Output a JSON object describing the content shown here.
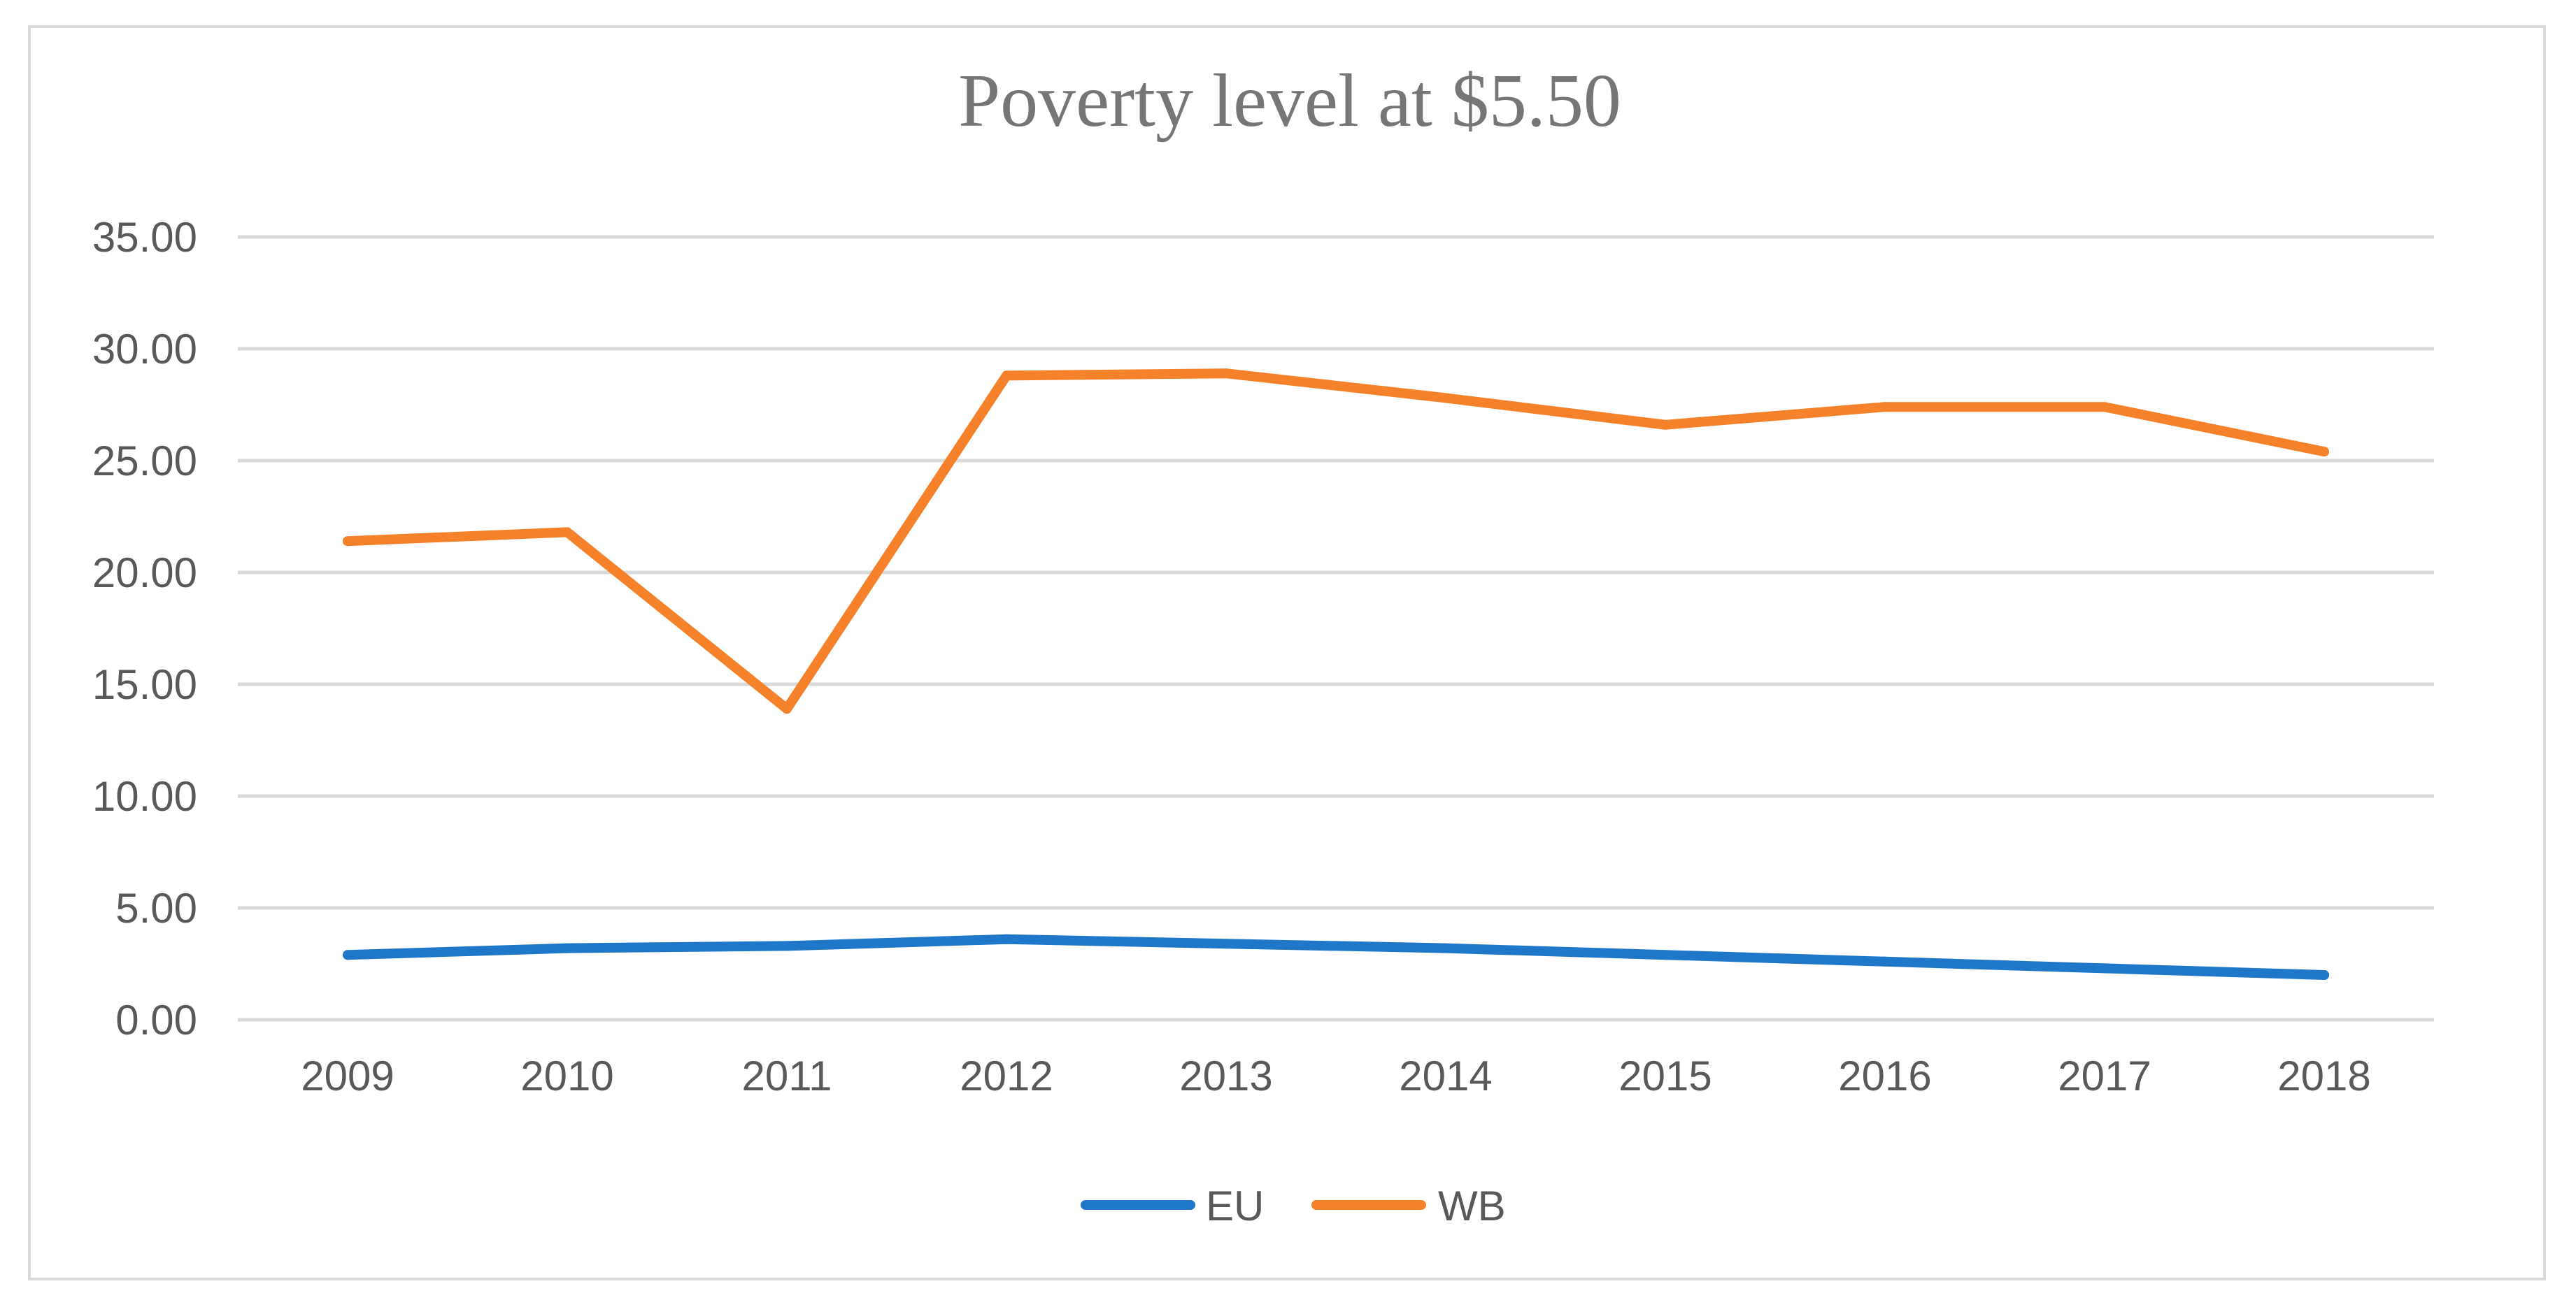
{
  "chart_data": {
    "type": "line",
    "title": "Poverty level at $5.50",
    "xlabel": "",
    "ylabel": "",
    "categories": [
      "2009",
      "2010",
      "2011",
      "2012",
      "2013",
      "2014",
      "2015",
      "2016",
      "2017",
      "2018"
    ],
    "ylim": [
      0,
      35
    ],
    "yticks": [
      0,
      5,
      10,
      15,
      20,
      25,
      30,
      35
    ],
    "ytick_labels": [
      "0.00",
      "5.00",
      "10.00",
      "15.00",
      "20.00",
      "25.00",
      "30.00",
      "35.00"
    ],
    "grid": true,
    "legend_position": "bottom",
    "series": [
      {
        "name": "EU",
        "color": "#1f77c9",
        "values": [
          2.9,
          3.2,
          3.3,
          3.6,
          3.4,
          3.2,
          2.9,
          2.6,
          2.3,
          2.0
        ]
      },
      {
        "name": "WB",
        "color": "#f5812b",
        "values": [
          21.4,
          21.8,
          13.9,
          28.8,
          28.9,
          27.8,
          26.6,
          27.4,
          27.4,
          25.4
        ]
      }
    ]
  }
}
